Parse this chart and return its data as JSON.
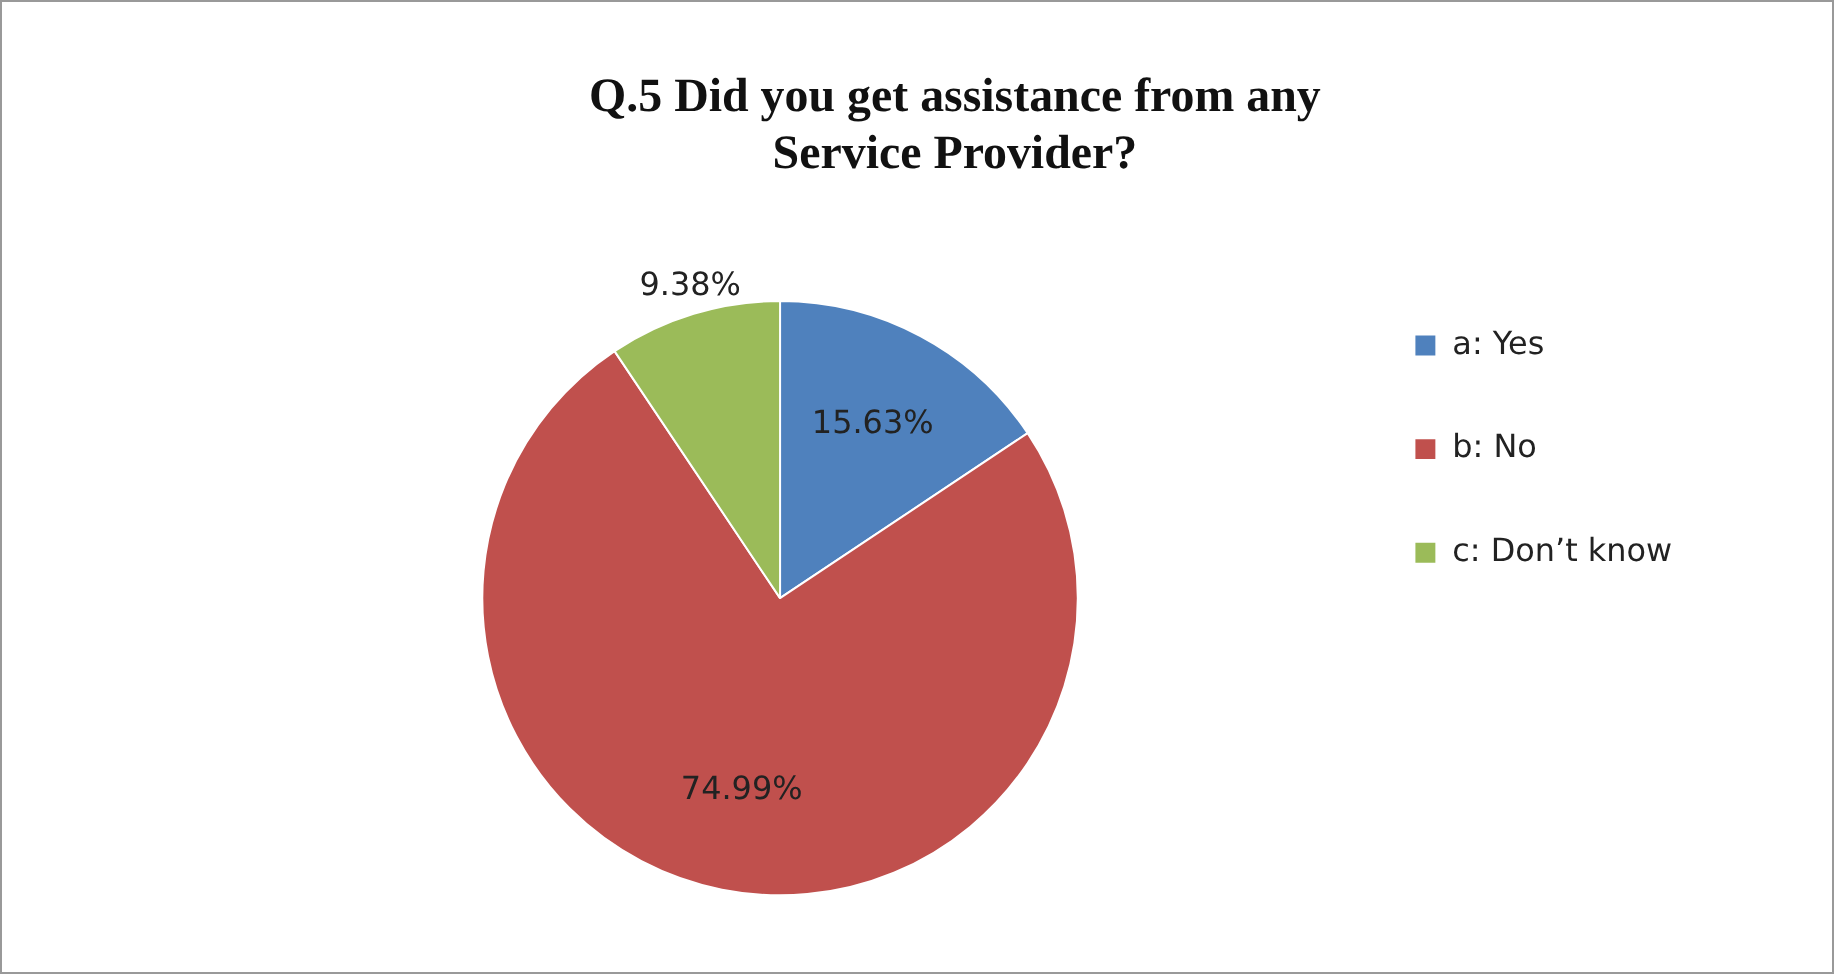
{
  "chart_data": {
    "type": "pie",
    "title": "Q.5 Did you get assistance from any Service Provider?",
    "categories": [
      "a: Yes",
      "b: No",
      "c: Don’t know"
    ],
    "values": [
      15.63,
      74.99,
      9.38
    ],
    "colors": [
      "#4f81bd",
      "#c0504d",
      "#9bbb59"
    ],
    "value_labels": [
      "15.63%",
      "74.99%",
      "9.38%"
    ],
    "legend": "right"
  }
}
